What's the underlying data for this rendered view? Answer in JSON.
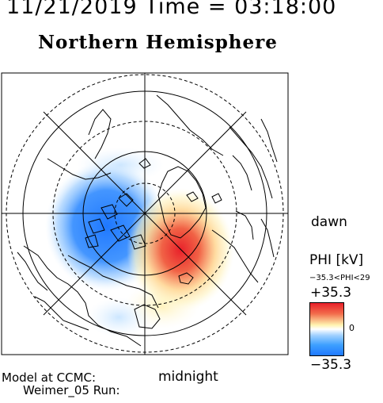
{
  "header": {
    "title": "11/21/2019 Time = 03:18:00",
    "subtitle": "Northern Hemisphere"
  },
  "map": {
    "dawn_label": "dawn",
    "midnight_label": "midnight",
    "grid": {
      "latitude_circles_deg": [
        80,
        70,
        60,
        50
      ],
      "meridians_every_deg": 45
    }
  },
  "legend": {
    "quantity": "PHI [kV]",
    "range_text": "−35.3<PHI<29",
    "max_label": "+35.3",
    "min_label": "−35.3",
    "zero_label": "0",
    "colors": {
      "negative": "#1f78ff",
      "neutral": "#ffffff",
      "positive_low": "#fff3b0",
      "positive_high": "#e8202a"
    }
  },
  "footer": {
    "line1": "Model at CCMC:",
    "line2": "Weimer_05 Run:"
  }
}
